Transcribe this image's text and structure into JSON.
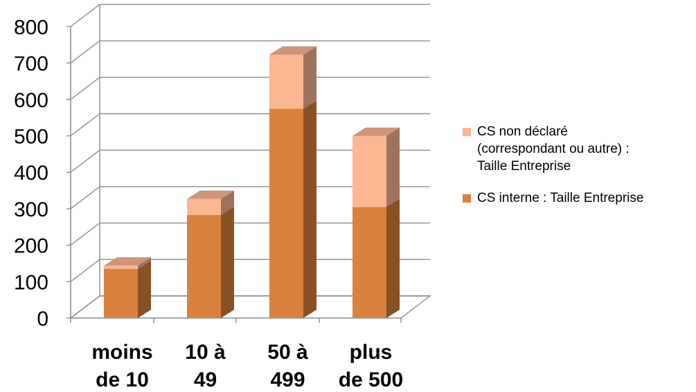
{
  "chart_data": {
    "type": "bar",
    "stacked": true,
    "style": "3d-column",
    "categories": [
      "moins de 10",
      "10 à 49",
      "50 à 499",
      "plus de 500"
    ],
    "category_lines": [
      [
        "moins",
        "de 10"
      ],
      [
        "10 à",
        "49"
      ],
      [
        "50 à",
        "499"
      ],
      [
        "plus",
        "de 500"
      ]
    ],
    "series": [
      {
        "name": "CS interne :  Taille Entreprise",
        "color": "#D9813D",
        "values": [
          135,
          283,
          574,
          305
        ]
      },
      {
        "name": "CS non déclaré (correspondant ou autre) : Taille Entreprise",
        "name_lines": " CS non déclaré\n(correspondant ou autre) :\nTaille Entreprise",
        "color": "#FBB692",
        "values": [
          9,
          44,
          149,
          195
        ]
      }
    ],
    "yticks": [
      "0",
      "100",
      "200",
      "300",
      "400",
      "500",
      "600",
      "700",
      "800"
    ],
    "ylim": [
      0,
      800
    ],
    "grid": true,
    "legend_position": "right",
    "legend_order": [
      1,
      0
    ]
  }
}
